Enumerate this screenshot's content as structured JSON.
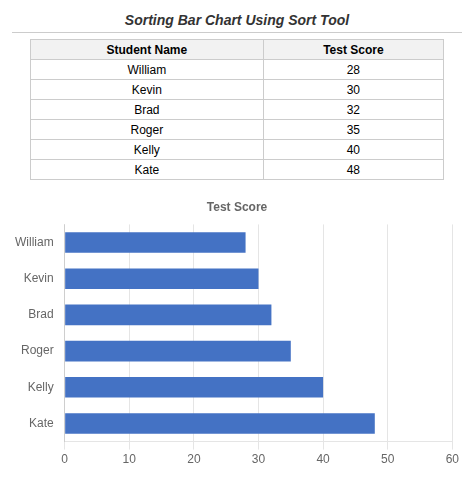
{
  "title": "Sorting Bar Chart Using Sort Tool",
  "table": {
    "headers": [
      "Student Name",
      "Test Score"
    ],
    "rows": [
      [
        "William",
        28
      ],
      [
        "Kevin",
        30
      ],
      [
        "Brad",
        32
      ],
      [
        "Roger",
        35
      ],
      [
        "Kelly",
        40
      ],
      [
        "Kate",
        48
      ]
    ]
  },
  "chart_data": {
    "type": "bar",
    "orientation": "horizontal",
    "title": "Test Score",
    "categories": [
      "Kate",
      "Kelly",
      "Roger",
      "Brad",
      "Kevin",
      "William"
    ],
    "values": [
      48,
      40,
      35,
      32,
      30,
      28
    ],
    "color": "#4472C4",
    "xlim": [
      0,
      60
    ],
    "xticks": [
      0,
      10,
      20,
      30,
      40,
      50,
      60
    ],
    "grid": true
  }
}
